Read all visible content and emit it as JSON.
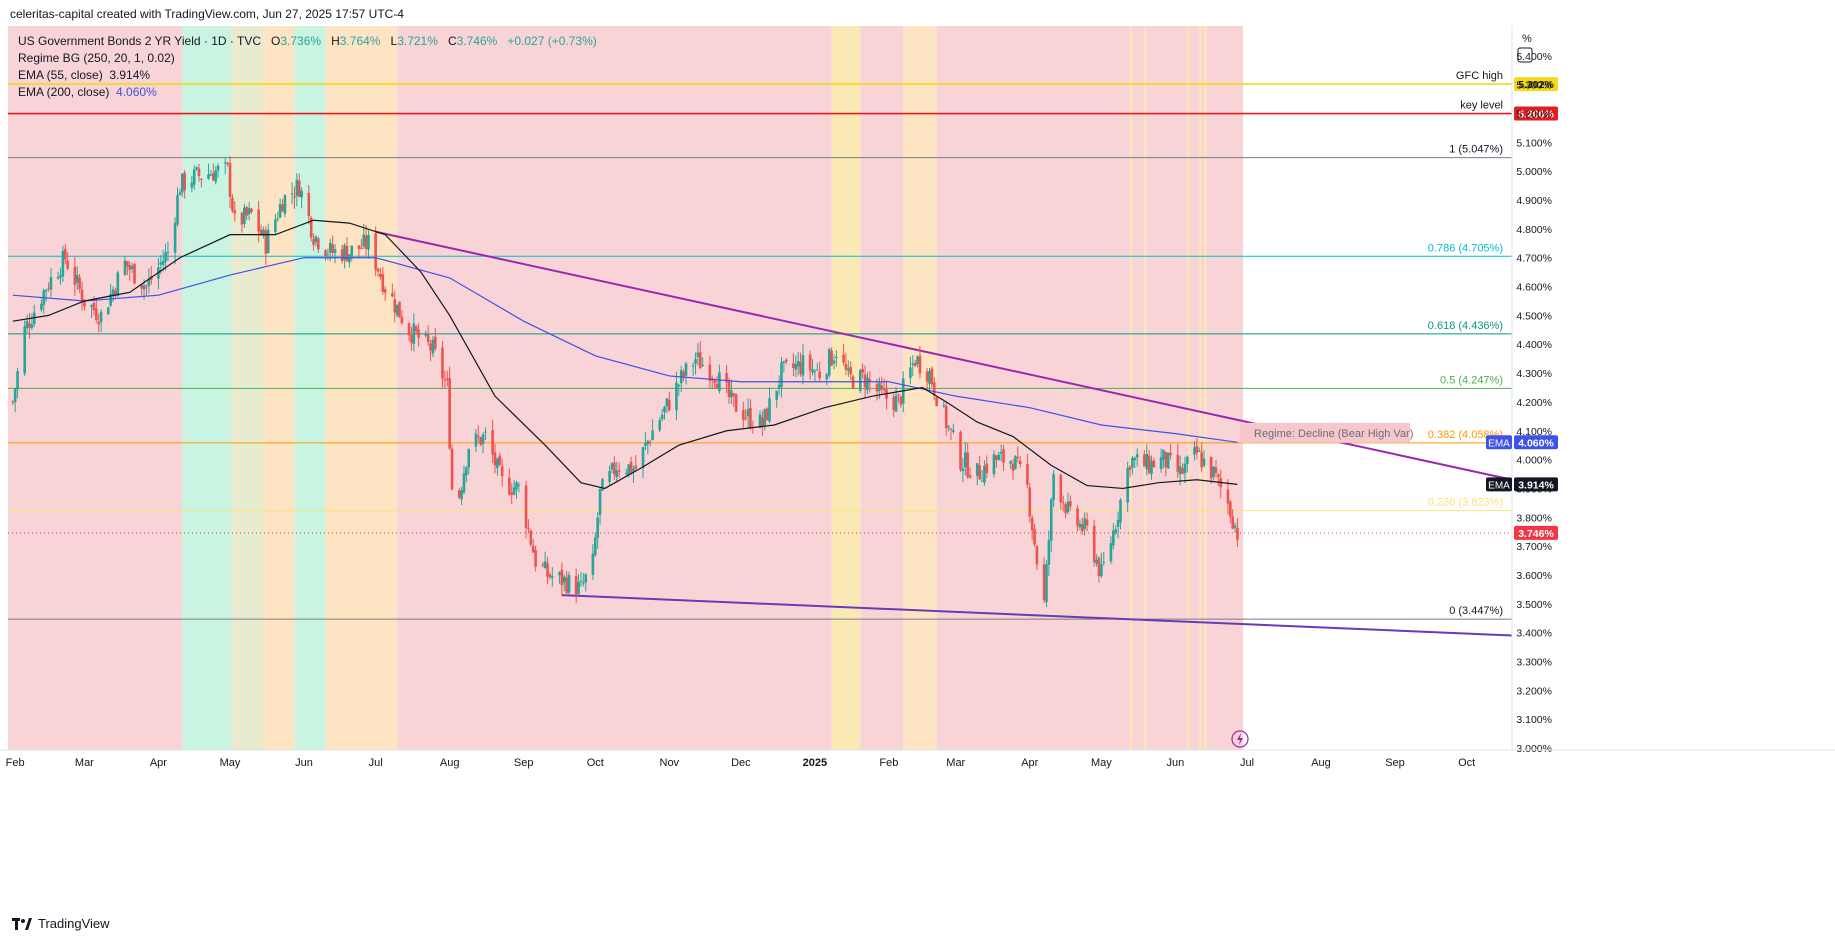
{
  "header": {
    "title": "celeritas-capital created with TradingView.com, Jun 27, 2025 17:57 UTC-4"
  },
  "legend": {
    "symbol": "US Government Bonds 2 YR Yield · 1D · TVC",
    "o_label": "O",
    "o": "3.736%",
    "h_label": "H",
    "h": "3.764%",
    "l_label": "L",
    "l": "3.721%",
    "c_label": "C",
    "c": "3.746%",
    "change": "+0.027 (+0.73%)",
    "regime": "Regime BG (250, 20, 1, 0.02)",
    "ema55_label": "EMA (55, close)",
    "ema55_value": "3.914%",
    "ema200_label": "EMA (200, close)",
    "ema200_value": "4.060%"
  },
  "footer": {
    "brand": "TradingView"
  },
  "colors": {
    "up": "#26a69a",
    "down": "#ef5350",
    "bear_bg": "#f8d4d7",
    "bull_bg": "#c9f4e1",
    "neutral_bg": "#fde4c3",
    "caution_bg": "#fbe9b5",
    "trendline": "#9c27b0",
    "ema200": "#3f51e8",
    "ema55": "#131722"
  },
  "chart_data": {
    "type": "candlestick",
    "title": "US Government Bonds 2 YR Yield · 1D · TVC",
    "y_unit": "%",
    "ylim": [
      3.0,
      5.45
    ],
    "y_ticks": [
      "5.400%",
      "5.300%",
      "5.200%",
      "5.100%",
      "5.000%",
      "4.900%",
      "4.800%",
      "4.700%",
      "4.600%",
      "4.500%",
      "4.400%",
      "4.300%",
      "4.200%",
      "4.100%",
      "4.000%",
      "3.900%",
      "3.800%",
      "3.700%",
      "3.600%",
      "3.500%",
      "3.400%",
      "3.300%",
      "3.200%",
      "3.100%",
      "3.000%"
    ],
    "x_ticks": [
      {
        "label": "Feb",
        "x": "2024-02-01"
      },
      {
        "label": "Mar",
        "x": "2024-03-01"
      },
      {
        "label": "Apr",
        "x": "2024-04-01"
      },
      {
        "label": "May",
        "x": "2024-05-01"
      },
      {
        "label": "Jun",
        "x": "2024-06-01"
      },
      {
        "label": "Jul",
        "x": "2024-07-01"
      },
      {
        "label": "Aug",
        "x": "2024-08-01"
      },
      {
        "label": "Sep",
        "x": "2024-09-01"
      },
      {
        "label": "Oct",
        "x": "2024-10-01"
      },
      {
        "label": "Nov",
        "x": "2024-11-01"
      },
      {
        "label": "Dec",
        "x": "2024-12-01"
      },
      {
        "label": "2025",
        "x": "2025-01-01"
      },
      {
        "label": "Feb",
        "x": "2025-02-01"
      },
      {
        "label": "Mar",
        "x": "2025-03-01"
      },
      {
        "label": "Apr",
        "x": "2025-04-01"
      },
      {
        "label": "May",
        "x": "2025-05-01"
      },
      {
        "label": "Jun",
        "x": "2025-06-01"
      },
      {
        "label": "Jul",
        "x": "2025-07-01"
      },
      {
        "label": "Aug",
        "x": "2025-08-01"
      },
      {
        "label": "Sep",
        "x": "2025-09-01"
      },
      {
        "label": "Oct",
        "x": "2025-10-01"
      }
    ],
    "x_range": [
      "2024-01-29",
      "2025-10-20"
    ],
    "close_path": [
      [
        "2024-01-31",
        4.2
      ],
      [
        "2024-02-05",
        4.45
      ],
      [
        "2024-02-14",
        4.6
      ],
      [
        "2024-02-22",
        4.7
      ],
      [
        "2024-03-01",
        4.55
      ],
      [
        "2024-03-08",
        4.5
      ],
      [
        "2024-03-18",
        4.68
      ],
      [
        "2024-03-27",
        4.6
      ],
      [
        "2024-04-05",
        4.72
      ],
      [
        "2024-04-10",
        4.95
      ],
      [
        "2024-04-16",
        4.98
      ],
      [
        "2024-04-25",
        5.0
      ],
      [
        "2024-04-30",
        5.0
      ],
      [
        "2024-05-03",
        4.82
      ],
      [
        "2024-05-10",
        4.85
      ],
      [
        "2024-05-16",
        4.75
      ],
      [
        "2024-05-23",
        4.9
      ],
      [
        "2024-05-30",
        4.95
      ],
      [
        "2024-06-05",
        4.78
      ],
      [
        "2024-06-12",
        4.72
      ],
      [
        "2024-06-20",
        4.72
      ],
      [
        "2024-06-28",
        4.75
      ],
      [
        "2024-07-05",
        4.6
      ],
      [
        "2024-07-15",
        4.45
      ],
      [
        "2024-07-25",
        4.38
      ],
      [
        "2024-07-31",
        4.25
      ],
      [
        "2024-08-02",
        3.9
      ],
      [
        "2024-08-05",
        3.88
      ],
      [
        "2024-08-09",
        4.05
      ],
      [
        "2024-08-16",
        4.08
      ],
      [
        "2024-08-23",
        3.92
      ],
      [
        "2024-08-30",
        3.9
      ],
      [
        "2024-09-06",
        3.65
      ],
      [
        "2024-09-11",
        3.6
      ],
      [
        "2024-09-18",
        3.58
      ],
      [
        "2024-09-25",
        3.55
      ],
      [
        "2024-09-30",
        3.64
      ],
      [
        "2024-10-03",
        3.88
      ],
      [
        "2024-10-10",
        3.98
      ],
      [
        "2024-10-18",
        3.97
      ],
      [
        "2024-10-25",
        4.1
      ],
      [
        "2024-11-01",
        4.2
      ],
      [
        "2024-11-06",
        4.28
      ],
      [
        "2024-11-12",
        4.35
      ],
      [
        "2024-11-20",
        4.3
      ],
      [
        "2024-11-27",
        4.2
      ],
      [
        "2024-12-04",
        4.15
      ],
      [
        "2024-12-10",
        4.12
      ],
      [
        "2024-12-18",
        4.3
      ],
      [
        "2024-12-27",
        4.33
      ],
      [
        "2025-01-03",
        4.3
      ],
      [
        "2025-01-10",
        4.38
      ],
      [
        "2025-01-15",
        4.28
      ],
      [
        "2025-01-22",
        4.28
      ],
      [
        "2025-01-29",
        4.22
      ],
      [
        "2025-02-05",
        4.2
      ],
      [
        "2025-02-12",
        4.35
      ],
      [
        "2025-02-18",
        4.3
      ],
      [
        "2025-02-24",
        4.15
      ],
      [
        "2025-03-03",
        4.0
      ],
      [
        "2025-03-10",
        3.95
      ],
      [
        "2025-03-17",
        4.0
      ],
      [
        "2025-03-25",
        4.0
      ],
      [
        "2025-03-31",
        3.9
      ],
      [
        "2025-04-04",
        3.65
      ],
      [
        "2025-04-07",
        3.5
      ],
      [
        "2025-04-11",
        3.95
      ],
      [
        "2025-04-18",
        3.8
      ],
      [
        "2025-04-25",
        3.75
      ],
      [
        "2025-05-01",
        3.6
      ],
      [
        "2025-05-06",
        3.75
      ],
      [
        "2025-05-13",
        4.0
      ],
      [
        "2025-05-20",
        3.98
      ],
      [
        "2025-05-27",
        4.0
      ],
      [
        "2025-06-03",
        3.95
      ],
      [
        "2025-06-10",
        4.02
      ],
      [
        "2025-06-17",
        3.95
      ],
      [
        "2025-06-23",
        3.85
      ],
      [
        "2025-06-27",
        3.746
      ]
    ],
    "ema55_path": [
      [
        "2024-01-31",
        4.48
      ],
      [
        "2024-02-15",
        4.5
      ],
      [
        "2024-03-01",
        4.55
      ],
      [
        "2024-03-20",
        4.58
      ],
      [
        "2024-04-10",
        4.7
      ],
      [
        "2024-05-01",
        4.78
      ],
      [
        "2024-05-20",
        4.78
      ],
      [
        "2024-06-05",
        4.83
      ],
      [
        "2024-06-20",
        4.82
      ],
      [
        "2024-07-05",
        4.78
      ],
      [
        "2024-07-20",
        4.65
      ],
      [
        "2024-08-01",
        4.5
      ],
      [
        "2024-08-20",
        4.22
      ],
      [
        "2024-09-10",
        4.05
      ],
      [
        "2024-09-25",
        3.92
      ],
      [
        "2024-10-05",
        3.9
      ],
      [
        "2024-10-20",
        3.97
      ],
      [
        "2024-11-05",
        4.05
      ],
      [
        "2024-11-25",
        4.1
      ],
      [
        "2024-12-15",
        4.12
      ],
      [
        "2025-01-05",
        4.18
      ],
      [
        "2025-01-25",
        4.22
      ],
      [
        "2025-02-15",
        4.25
      ],
      [
        "2025-02-25",
        4.2
      ],
      [
        "2025-03-10",
        4.13
      ],
      [
        "2025-03-25",
        4.08
      ],
      [
        "2025-04-10",
        3.98
      ],
      [
        "2025-04-25",
        3.91
      ],
      [
        "2025-05-10",
        3.9
      ],
      [
        "2025-05-25",
        3.92
      ],
      [
        "2025-06-10",
        3.93
      ],
      [
        "2025-06-27",
        3.914
      ]
    ],
    "ema200_path": [
      [
        "2024-01-31",
        4.57
      ],
      [
        "2024-03-01",
        4.55
      ],
      [
        "2024-04-01",
        4.57
      ],
      [
        "2024-05-01",
        4.64
      ],
      [
        "2024-06-01",
        4.7
      ],
      [
        "2024-07-01",
        4.7
      ],
      [
        "2024-08-01",
        4.63
      ],
      [
        "2024-09-01",
        4.48
      ],
      [
        "2024-10-01",
        4.36
      ],
      [
        "2024-11-01",
        4.29
      ],
      [
        "2024-12-01",
        4.27
      ],
      [
        "2025-01-01",
        4.27
      ],
      [
        "2025-02-01",
        4.27
      ],
      [
        "2025-03-01",
        4.22
      ],
      [
        "2025-04-01",
        4.18
      ],
      [
        "2025-05-01",
        4.12
      ],
      [
        "2025-06-01",
        4.09
      ],
      [
        "2025-06-27",
        4.06
      ]
    ],
    "horizontal_levels": [
      {
        "label": "GFC high",
        "value": 5.302,
        "tag": "5.302%",
        "color": "#f5d915"
      },
      {
        "label": "key level",
        "value": 5.2,
        "tag": "5.200%",
        "color": "#e31b23"
      },
      {
        "label": "1 (5.047%)",
        "value": 5.047,
        "color": "#787b86"
      },
      {
        "label": "0.786 (4.705%)",
        "value": 4.705,
        "color": "#00bcd4"
      },
      {
        "label": "0.618 (4.436%)",
        "value": 4.436,
        "color": "#089981"
      },
      {
        "label": "0.5 (4.247%)",
        "value": 4.247,
        "color": "#4caf50"
      },
      {
        "label": "0.382 (4.058%)",
        "value": 4.058,
        "color": "#ff9800"
      },
      {
        "label": "0.236 (3.823%)",
        "value": 3.823,
        "color": "#fbe27a"
      },
      {
        "label": "0 (3.447%)",
        "value": 3.447,
        "color": "#787b86"
      }
    ],
    "trendlines": [
      {
        "from": [
          "2024-07-01",
          4.79
        ],
        "to": [
          "2025-10-20",
          3.93
        ],
        "color": "#9c27b0"
      },
      {
        "from": [
          "2024-09-17",
          3.53
        ],
        "to": [
          "2025-10-20",
          3.39
        ],
        "color": "#673ab7"
      }
    ],
    "regime_bands": [
      {
        "from": "2024-01-29",
        "to": "2024-04-11",
        "regime": "bear"
      },
      {
        "from": "2024-04-11",
        "to": "2024-05-01",
        "regime": "bull"
      },
      {
        "from": "2024-05-01",
        "to": "2024-05-28",
        "regime": "mixed"
      },
      {
        "from": "2024-05-28",
        "to": "2024-06-10",
        "regime": "bull"
      },
      {
        "from": "2024-06-10",
        "to": "2024-07-10",
        "regime": "neutral"
      },
      {
        "from": "2024-07-10",
        "to": "2025-01-08",
        "regime": "bear"
      },
      {
        "from": "2025-01-08",
        "to": "2025-01-20",
        "regime": "caution"
      },
      {
        "from": "2025-01-20",
        "to": "2025-02-07",
        "regime": "bear"
      },
      {
        "from": "2025-02-07",
        "to": "2025-02-21",
        "regime": "neutral"
      },
      {
        "from": "2025-02-21",
        "to": "2025-06-27",
        "regime": "bear"
      }
    ],
    "regime_label": "Regime: Decline (Bear High Var)",
    "price_tags": [
      {
        "label": "EMA",
        "tag": "4.060%",
        "value": 4.06,
        "bg": "#3f51e8"
      },
      {
        "label": "EMA",
        "tag": "3.914%",
        "value": 3.914,
        "bg": "#131722"
      },
      {
        "label": "",
        "tag": "3.746%",
        "value": 3.746,
        "bg": "#f23645"
      }
    ],
    "grid": false,
    "legend_position": "top-left"
  }
}
